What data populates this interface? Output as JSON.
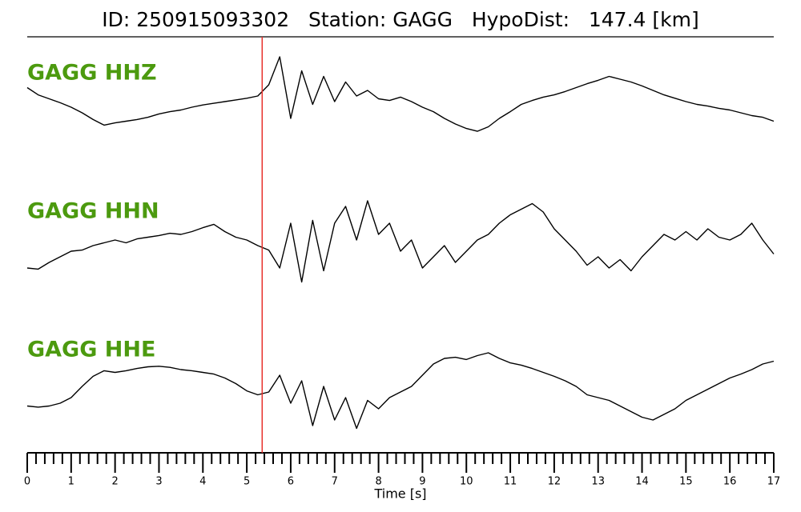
{
  "chart_data": {
    "type": "line",
    "title": "ID: 250915093302   Station: GAGG   HypoDist:   147.4 [km]",
    "xlabel": "Time [s]",
    "x": [
      0,
      0.25,
      0.5,
      0.75,
      1,
      1.25,
      1.5,
      1.75,
      2,
      2.25,
      2.5,
      2.75,
      3,
      3.25,
      3.5,
      3.75,
      4,
      4.25,
      4.5,
      4.75,
      5,
      5.25,
      5.5,
      5.75,
      6,
      6.25,
      6.5,
      6.75,
      7,
      7.25,
      7.5,
      7.75,
      8,
      8.25,
      8.5,
      8.75,
      9,
      9.25,
      9.5,
      9.75,
      10,
      10.25,
      10.5,
      10.75,
      11,
      11.25,
      11.5,
      11.75,
      12,
      12.25,
      12.5,
      12.75,
      13,
      13.25,
      13.5,
      13.75,
      14,
      14.25,
      14.5,
      14.75,
      15,
      15.25,
      15.5,
      15.75,
      16,
      16.25,
      16.5,
      16.75,
      17
    ],
    "series": [
      {
        "name": "GAGG HHZ",
        "color": "#000000",
        "label_color": "#4c9a0f",
        "values": [
          15,
          2,
          -5,
          -12,
          -20,
          -30,
          -42,
          -52,
          -48,
          -45,
          -42,
          -38,
          -32,
          -28,
          -25,
          -20,
          -16,
          -13,
          -10,
          -7,
          -4,
          0,
          20,
          70,
          -40,
          45,
          -15,
          35,
          -10,
          25,
          0,
          10,
          -5,
          -8,
          -2,
          -10,
          -20,
          -28,
          -40,
          -50,
          -58,
          -63,
          -55,
          -40,
          -28,
          -15,
          -8,
          -2,
          2,
          8,
          15,
          22,
          28,
          35,
          30,
          25,
          18,
          10,
          2,
          -4,
          -10,
          -15,
          -18,
          -22,
          -25,
          -30,
          -35,
          -38,
          -45
        ]
      },
      {
        "name": "GAGG HHN",
        "color": "#000000",
        "label_color": "#4c9a0f",
        "values": [
          -50,
          -52,
          -40,
          -30,
          -20,
          -18,
          -10,
          -5,
          0,
          -5,
          2,
          5,
          8,
          12,
          10,
          15,
          22,
          28,
          15,
          5,
          0,
          -10,
          -18,
          -50,
          30,
          -75,
          35,
          -55,
          30,
          60,
          0,
          70,
          10,
          30,
          -20,
          0,
          -50,
          -30,
          -10,
          -40,
          -20,
          0,
          10,
          30,
          45,
          55,
          65,
          50,
          20,
          0,
          -20,
          -45,
          -30,
          -50,
          -35,
          -55,
          -30,
          -10,
          10,
          0,
          15,
          0,
          20,
          5,
          0,
          10,
          30,
          0,
          -25
        ]
      },
      {
        "name": "GAGG HHE",
        "color": "#000000",
        "label_color": "#4c9a0f",
        "values": [
          -25,
          -27,
          -25,
          -20,
          -10,
          10,
          28,
          38,
          35,
          38,
          42,
          45,
          46,
          44,
          40,
          38,
          35,
          32,
          25,
          15,
          2,
          -5,
          0,
          30,
          -20,
          20,
          -60,
          10,
          -50,
          -10,
          -65,
          -15,
          -30,
          -10,
          0,
          10,
          30,
          50,
          60,
          62,
          58,
          65,
          70,
          60,
          52,
          48,
          42,
          35,
          28,
          20,
          10,
          -5,
          -10,
          -15,
          -25,
          -35,
          -45,
          -50,
          -40,
          -30,
          -15,
          -5,
          5,
          15,
          25,
          32,
          40,
          50,
          55
        ]
      }
    ],
    "ylim": [
      -100,
      100
    ],
    "xlim": [
      0,
      17
    ],
    "xticks": [
      0,
      1,
      2,
      3,
      4,
      5,
      6,
      7,
      8,
      9,
      10,
      11,
      12,
      13,
      14,
      15,
      16,
      17
    ],
    "xminorticks": [
      0.2,
      0.4,
      0.6,
      0.8,
      1.2,
      1.4,
      1.6,
      1.8,
      2.2,
      2.4,
      2.6,
      2.8,
      3.2,
      3.4,
      3.6,
      3.8,
      4.2,
      4.4,
      4.6,
      4.8,
      5.2,
      5.4,
      5.6,
      5.8,
      6.2,
      6.4,
      6.6,
      6.8,
      7.2,
      7.4,
      7.6,
      7.8,
      8.2,
      8.4,
      8.6,
      8.8,
      9.2,
      9.4,
      9.6,
      9.8,
      10.2,
      10.4,
      10.6,
      10.8,
      11.2,
      11.4,
      11.6,
      11.8,
      12.2,
      12.4,
      12.6,
      12.8,
      13.2,
      13.4,
      13.6,
      13.8,
      14.2,
      14.4,
      14.6,
      14.8,
      15.2,
      15.4,
      15.6,
      15.8,
      16.2,
      16.4,
      16.6,
      16.8
    ],
    "marker": {
      "x": 5.35,
      "color": "#e8302a"
    }
  }
}
